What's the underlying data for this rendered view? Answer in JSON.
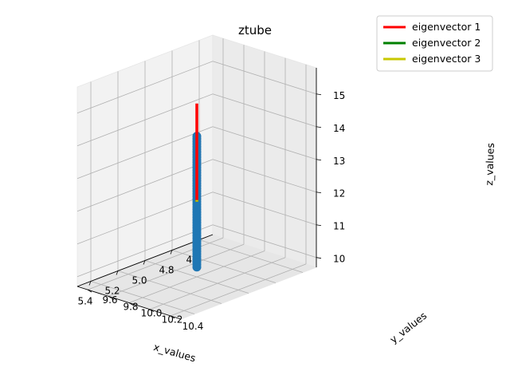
{
  "chart_data": {
    "type": "scatter",
    "title": "ztube",
    "xlabel": "x_values",
    "ylabel": "y_values",
    "zlabel": "z_values",
    "xlim": [
      4.5,
      5.5
    ],
    "ylim": [
      9.5,
      10.5
    ],
    "zlim": [
      9.7,
      15.8
    ],
    "x_ticks": [
      "4.6",
      "4.8",
      "5.0",
      "5.2",
      "5.4"
    ],
    "y_ticks": [
      "9.6",
      "9.8",
      "10.0",
      "10.2",
      "10.4"
    ],
    "z_ticks": [
      "10",
      "11",
      "12",
      "13",
      "14",
      "15"
    ],
    "grid": true,
    "legend_position": "top-right",
    "points": {
      "color": "#1f77b4",
      "x": 5.0,
      "y": 10.0,
      "z_from": 10.0,
      "z_to": 14.0
    },
    "series": [
      {
        "name": "eigenvector 1",
        "color": "#ff0000",
        "start": [
          5.0,
          10.0,
          12.0
        ],
        "end": [
          5.0,
          10.0,
          15.0
        ]
      },
      {
        "name": "eigenvector 2",
        "color": "#008000",
        "start": [
          5.0,
          10.0,
          12.0
        ],
        "end": [
          5.0,
          10.0,
          12.05
        ]
      },
      {
        "name": "eigenvector 3",
        "color": "#c8c800",
        "start": [
          5.0,
          10.0,
          12.0
        ],
        "end": [
          5.0,
          10.0,
          12.05
        ]
      }
    ]
  }
}
